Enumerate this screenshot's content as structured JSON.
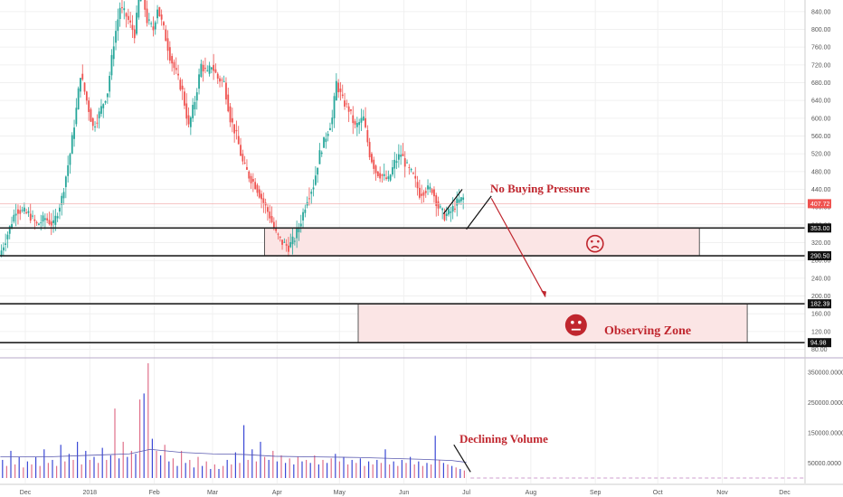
{
  "colors": {
    "up": "#26a69a",
    "down": "#ef5350",
    "vol_up": "#3b49d6",
    "vol_down": "#e0708a",
    "zone_fill": "#fbe5e5",
    "zone_stroke": "#222222",
    "annotation": "#c0262e",
    "price_label_bg": "#ef5350",
    "level_label_bg": "#111111",
    "grid": "#f0f0f0",
    "ma_line": "#5a5ab0"
  },
  "chart_data": {
    "type": "candlestick",
    "price_axis": {
      "ticks": [
        "840.00",
        "800.00",
        "760.00",
        "720.00",
        "680.00",
        "640.00",
        "600.00",
        "560.00",
        "520.00",
        "480.00",
        "440.00",
        "400.00",
        "360.00",
        "320.00",
        "280.00",
        "240.00",
        "200.00",
        "160.00",
        "120.00",
        "80.00"
      ],
      "tick_values": [
        840,
        800,
        760,
        720,
        680,
        640,
        600,
        560,
        520,
        480,
        440,
        400,
        360,
        320,
        280,
        240,
        200,
        160,
        120,
        80
      ]
    },
    "volume_axis": {
      "ticks": [
        "350000.0000",
        "250000.0000",
        "150000.0000",
        "50000.0000"
      ],
      "tick_values": [
        350000,
        250000,
        150000,
        50000
      ],
      "max": 380000
    },
    "x_axis": {
      "labels": [
        "Dec",
        "2018",
        "Feb",
        "Mar",
        "Apr",
        "May",
        "Jun",
        "Jul",
        "Aug",
        "Sep",
        "Oct",
        "Nov",
        "Dec"
      ],
      "label_day_index": [
        0,
        31,
        62,
        90,
        121,
        151,
        182,
        212,
        243,
        274,
        304,
        335,
        365
      ]
    },
    "last_price": "407.72",
    "levels": [
      {
        "label": "353.00",
        "value": 353
      },
      {
        "label": "290.50",
        "value": 290.5
      },
      {
        "label": "182.39",
        "value": 182.39
      },
      {
        "label": "94.98",
        "value": 94.98
      }
    ],
    "zones": [
      {
        "name": "support-zone",
        "from_day": 115,
        "to_day": 324,
        "low": 290.5,
        "high": 353,
        "icon": "sad"
      },
      {
        "name": "observing-zone",
        "from_day": 160,
        "to_day": 347,
        "low": 94.98,
        "high": 182.39,
        "icon": "neutral"
      }
    ],
    "annotations": {
      "no_buying_pressure": "No Buying Pressure",
      "observing_zone": "Observing Zone",
      "declining_volume": "Declining Volume"
    },
    "price_path": [
      [
        -12,
        290
      ],
      [
        -8,
        340
      ],
      [
        -4,
        395
      ],
      [
        -1,
        390
      ],
      [
        2,
        385
      ],
      [
        6,
        360
      ],
      [
        10,
        375
      ],
      [
        14,
        360
      ],
      [
        18,
        420
      ],
      [
        22,
        520
      ],
      [
        25,
        620
      ],
      [
        27,
        700
      ],
      [
        30,
        640
      ],
      [
        33,
        580
      ],
      [
        36,
        610
      ],
      [
        40,
        660
      ],
      [
        43,
        770
      ],
      [
        46,
        850
      ],
      [
        49,
        830
      ],
      [
        53,
        790
      ],
      [
        56,
        900
      ],
      [
        59,
        820
      ],
      [
        62,
        800
      ],
      [
        64,
        850
      ],
      [
        67,
        800
      ],
      [
        70,
        740
      ],
      [
        73,
        700
      ],
      [
        76,
        660
      ],
      [
        79,
        580
      ],
      [
        82,
        640
      ],
      [
        85,
        720
      ],
      [
        88,
        700
      ],
      [
        90,
        720
      ],
      [
        93,
        690
      ],
      [
        96,
        680
      ],
      [
        99,
        600
      ],
      [
        102,
        560
      ],
      [
        105,
        500
      ],
      [
        108,
        470
      ],
      [
        111,
        450
      ],
      [
        114,
        420
      ],
      [
        118,
        380
      ],
      [
        121,
        340
      ],
      [
        124,
        320
      ],
      [
        127,
        310
      ],
      [
        130,
        330
      ],
      [
        133,
        370
      ],
      [
        136,
        420
      ],
      [
        139,
        450
      ],
      [
        142,
        520
      ],
      [
        145,
        560
      ],
      [
        148,
        600
      ],
      [
        150,
        680
      ],
      [
        153,
        640
      ],
      [
        156,
        620
      ],
      [
        159,
        580
      ],
      [
        163,
        600
      ],
      [
        166,
        520
      ],
      [
        169,
        480
      ],
      [
        172,
        470
      ],
      [
        175,
        460
      ],
      [
        178,
        500
      ],
      [
        181,
        520
      ],
      [
        184,
        490
      ],
      [
        187,
        470
      ],
      [
        190,
        430
      ],
      [
        193,
        440
      ],
      [
        196,
        440
      ],
      [
        199,
        400
      ],
      [
        202,
        380
      ],
      [
        205,
        390
      ],
      [
        208,
        410
      ],
      [
        211,
        420
      ]
    ],
    "volume_bars": [
      [
        -11,
        60000
      ],
      [
        -9,
        40000
      ],
      [
        -7,
        90000
      ],
      [
        -5,
        45000
      ],
      [
        -3,
        70000
      ],
      [
        -1,
        35000
      ],
      [
        1,
        55000
      ],
      [
        3,
        45000
      ],
      [
        5,
        70000
      ],
      [
        7,
        40000
      ],
      [
        9,
        95000
      ],
      [
        11,
        50000
      ],
      [
        13,
        60000
      ],
      [
        15,
        40000
      ],
      [
        17,
        110000
      ],
      [
        19,
        55000
      ],
      [
        21,
        80000
      ],
      [
        23,
        60000
      ],
      [
        25,
        120000
      ],
      [
        27,
        45000
      ],
      [
        29,
        90000
      ],
      [
        31,
        60000
      ],
      [
        33,
        70000
      ],
      [
        35,
        50000
      ],
      [
        37,
        100000
      ],
      [
        39,
        60000
      ],
      [
        41,
        75000
      ],
      [
        43,
        230000
      ],
      [
        45,
        65000
      ],
      [
        47,
        120000
      ],
      [
        49,
        70000
      ],
      [
        51,
        90000
      ],
      [
        53,
        80000
      ],
      [
        55,
        260000
      ],
      [
        57,
        280000
      ],
      [
        59,
        380000
      ],
      [
        61,
        130000
      ],
      [
        63,
        90000
      ],
      [
        65,
        75000
      ],
      [
        67,
        110000
      ],
      [
        69,
        55000
      ],
      [
        71,
        65000
      ],
      [
        73,
        40000
      ],
      [
        75,
        90000
      ],
      [
        77,
        50000
      ],
      [
        79,
        60000
      ],
      [
        81,
        35000
      ],
      [
        83,
        70000
      ],
      [
        85,
        40000
      ],
      [
        87,
        55000
      ],
      [
        89,
        30000
      ],
      [
        91,
        45000
      ],
      [
        93,
        30000
      ],
      [
        95,
        40000
      ],
      [
        97,
        60000
      ],
      [
        99,
        45000
      ],
      [
        101,
        85000
      ],
      [
        103,
        50000
      ],
      [
        105,
        175000
      ],
      [
        107,
        60000
      ],
      [
        109,
        95000
      ],
      [
        111,
        55000
      ],
      [
        113,
        120000
      ],
      [
        115,
        70000
      ],
      [
        117,
        60000
      ],
      [
        119,
        90000
      ],
      [
        121,
        55000
      ],
      [
        123,
        75000
      ],
      [
        125,
        50000
      ],
      [
        127,
        65000
      ],
      [
        129,
        45000
      ],
      [
        131,
        70000
      ],
      [
        133,
        55000
      ],
      [
        135,
        60000
      ],
      [
        137,
        50000
      ],
      [
        139,
        75000
      ],
      [
        141,
        45000
      ],
      [
        143,
        60000
      ],
      [
        145,
        50000
      ],
      [
        147,
        65000
      ],
      [
        149,
        80000
      ],
      [
        151,
        55000
      ],
      [
        153,
        70000
      ],
      [
        155,
        45000
      ],
      [
        157,
        60000
      ],
      [
        159,
        50000
      ],
      [
        161,
        65000
      ],
      [
        163,
        40000
      ],
      [
        165,
        55000
      ],
      [
        167,
        45000
      ],
      [
        169,
        60000
      ],
      [
        171,
        50000
      ],
      [
        173,
        95000
      ],
      [
        175,
        45000
      ],
      [
        177,
        55000
      ],
      [
        179,
        40000
      ],
      [
        181,
        60000
      ],
      [
        183,
        50000
      ],
      [
        185,
        70000
      ],
      [
        187,
        45000
      ],
      [
        189,
        55000
      ],
      [
        191,
        40000
      ],
      [
        193,
        50000
      ],
      [
        195,
        45000
      ],
      [
        197,
        140000
      ],
      [
        199,
        60000
      ],
      [
        201,
        50000
      ],
      [
        203,
        45000
      ],
      [
        205,
        40000
      ],
      [
        207,
        35000
      ],
      [
        209,
        30000
      ],
      [
        211,
        25000
      ]
    ],
    "volume_ma": [
      [
        -12,
        70000
      ],
      [
        10,
        70000
      ],
      [
        30,
        75000
      ],
      [
        50,
        80000
      ],
      [
        60,
        95000
      ],
      [
        75,
        85000
      ],
      [
        90,
        80000
      ],
      [
        105,
        78000
      ],
      [
        120,
        72000
      ],
      [
        140,
        70000
      ],
      [
        160,
        68000
      ],
      [
        175,
        65000
      ],
      [
        190,
        62000
      ],
      [
        205,
        58000
      ],
      [
        212,
        52000
      ]
    ],
    "volume_trend_start_day": 206,
    "volume_trend_end_day": 214
  }
}
